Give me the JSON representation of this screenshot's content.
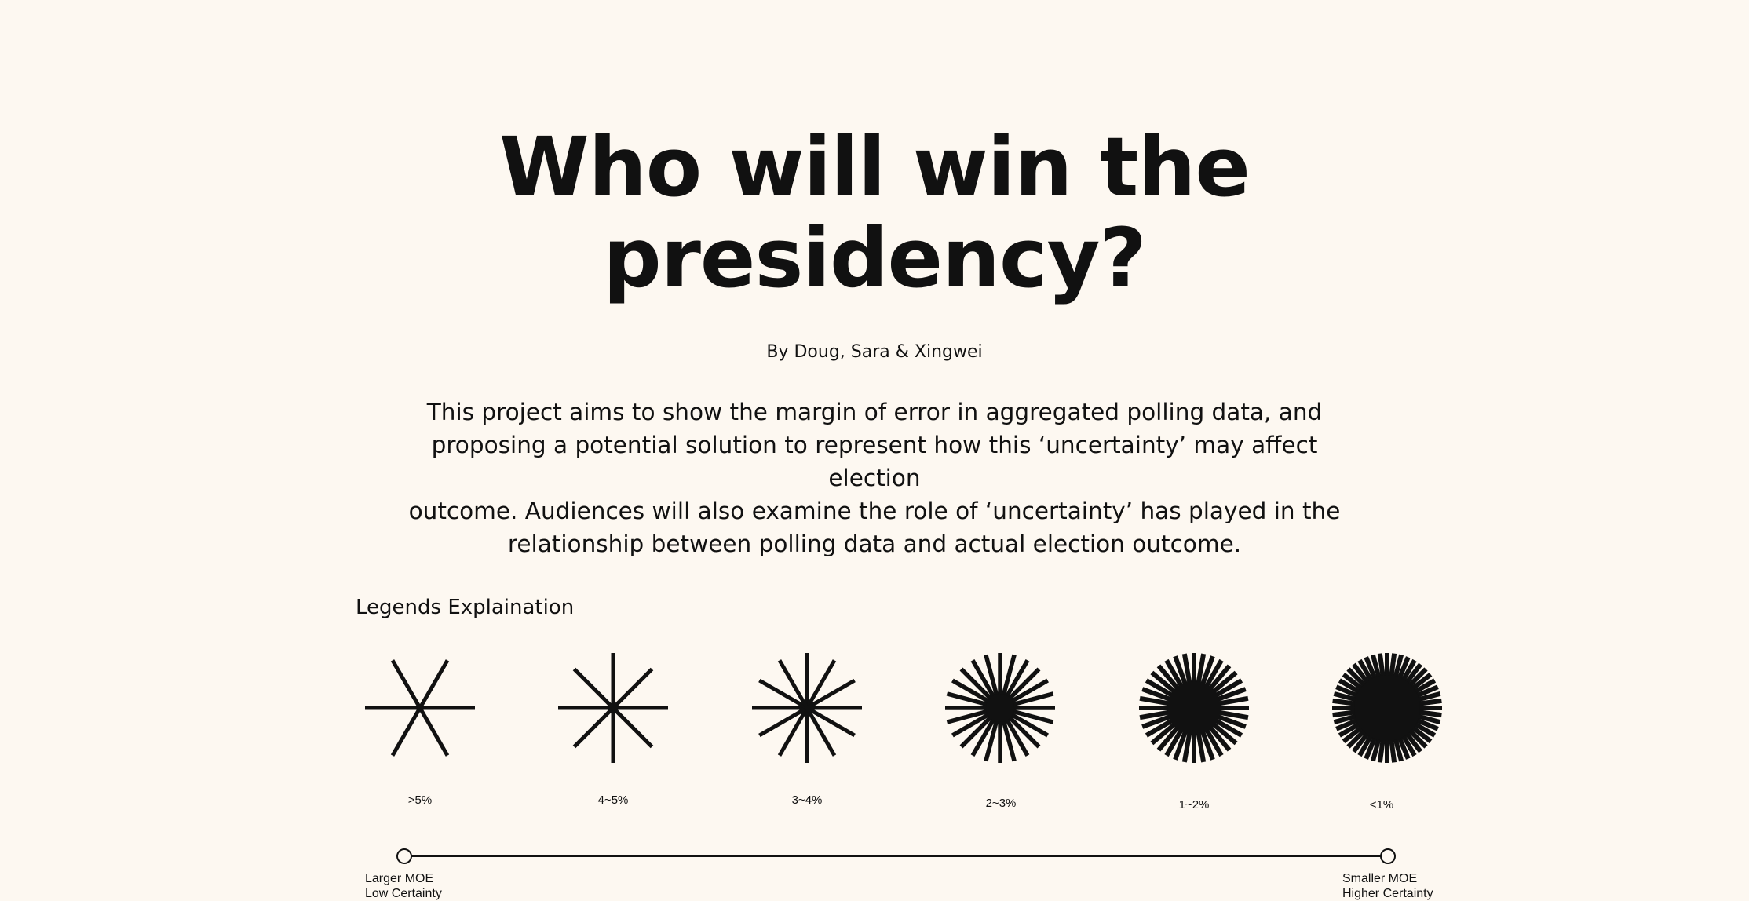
{
  "header": {
    "title_line1": "Who will win the",
    "title_line2": "presidency?",
    "byline": "By Doug, Sara & Xingwei"
  },
  "intro": {
    "lines": [
      "This project aims to show the margin of error in aggregated polling data, and",
      "proposing a potential solution to represent how this ‘uncertainty’ may affect election",
      "outcome. Audiences will also examine the role of ‘uncertainty’ has played in the",
      "relationship between polling data and actual election outcome."
    ]
  },
  "legend": {
    "heading": "Legends Explaination",
    "items": [
      {
        "label": ">5%",
        "spokes": 6,
        "icon": "starburst-6-icon"
      },
      {
        "label": "4~5%",
        "spokes": 8,
        "icon": "starburst-8-icon"
      },
      {
        "label": "3~4%",
        "spokes": 12,
        "icon": "starburst-12-icon"
      },
      {
        "label": "2~3%",
        "spokes": 24,
        "icon": "starburst-24-icon"
      },
      {
        "label": "1~2%",
        "spokes": 36,
        "icon": "starburst-36-icon"
      },
      {
        "label": "<1%",
        "spokes": 48,
        "icon": "starburst-48-icon"
      }
    ],
    "scale": {
      "left_line1": "Larger MOE",
      "left_line2": "Low Certainty",
      "right_line1": "Smaller MOE",
      "right_line2": "Higher Certainty"
    }
  },
  "colors": {
    "background": "#fdf8f1",
    "ink": "#111111"
  }
}
